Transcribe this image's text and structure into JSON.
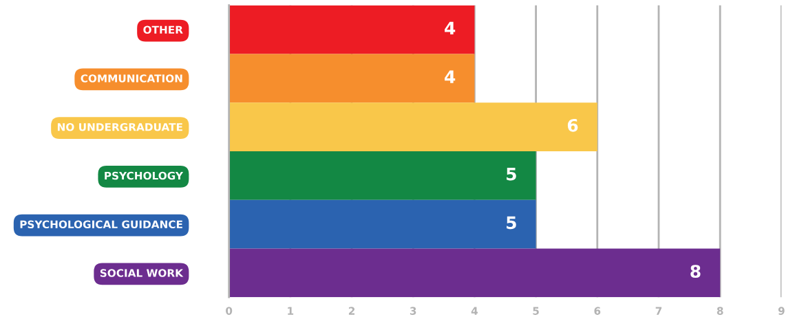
{
  "chart_data": {
    "type": "bar",
    "orientation": "horizontal",
    "categories": [
      "OTHER",
      "COMMUNICATION",
      "NO UNDERGRADUATE",
      "PSYCHOLOGY",
      "PSYCHOLOGICAL GUIDANCE",
      "SOCIAL WORK"
    ],
    "values": [
      4,
      4,
      6,
      5,
      5,
      8
    ],
    "colors": [
      "#ed1c24",
      "#f68e2d",
      "#f9c74a",
      "#138844",
      "#2b63b0",
      "#6c2d8f"
    ],
    "xlim": [
      0,
      9
    ],
    "xticks": [
      0,
      1,
      2,
      3,
      4,
      5,
      6,
      7,
      8,
      9
    ],
    "grid": "x",
    "data_labels": true,
    "legend": false
  }
}
